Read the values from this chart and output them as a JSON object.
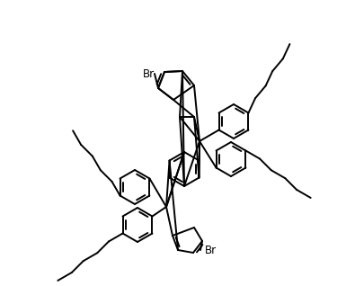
{
  "figsize": [
    3.85,
    3.18
  ],
  "dpi": 100,
  "bg": "#ffffff",
  "lc": "#000000",
  "lw": 1.4,
  "fs": 8.5,
  "bl": 20
}
